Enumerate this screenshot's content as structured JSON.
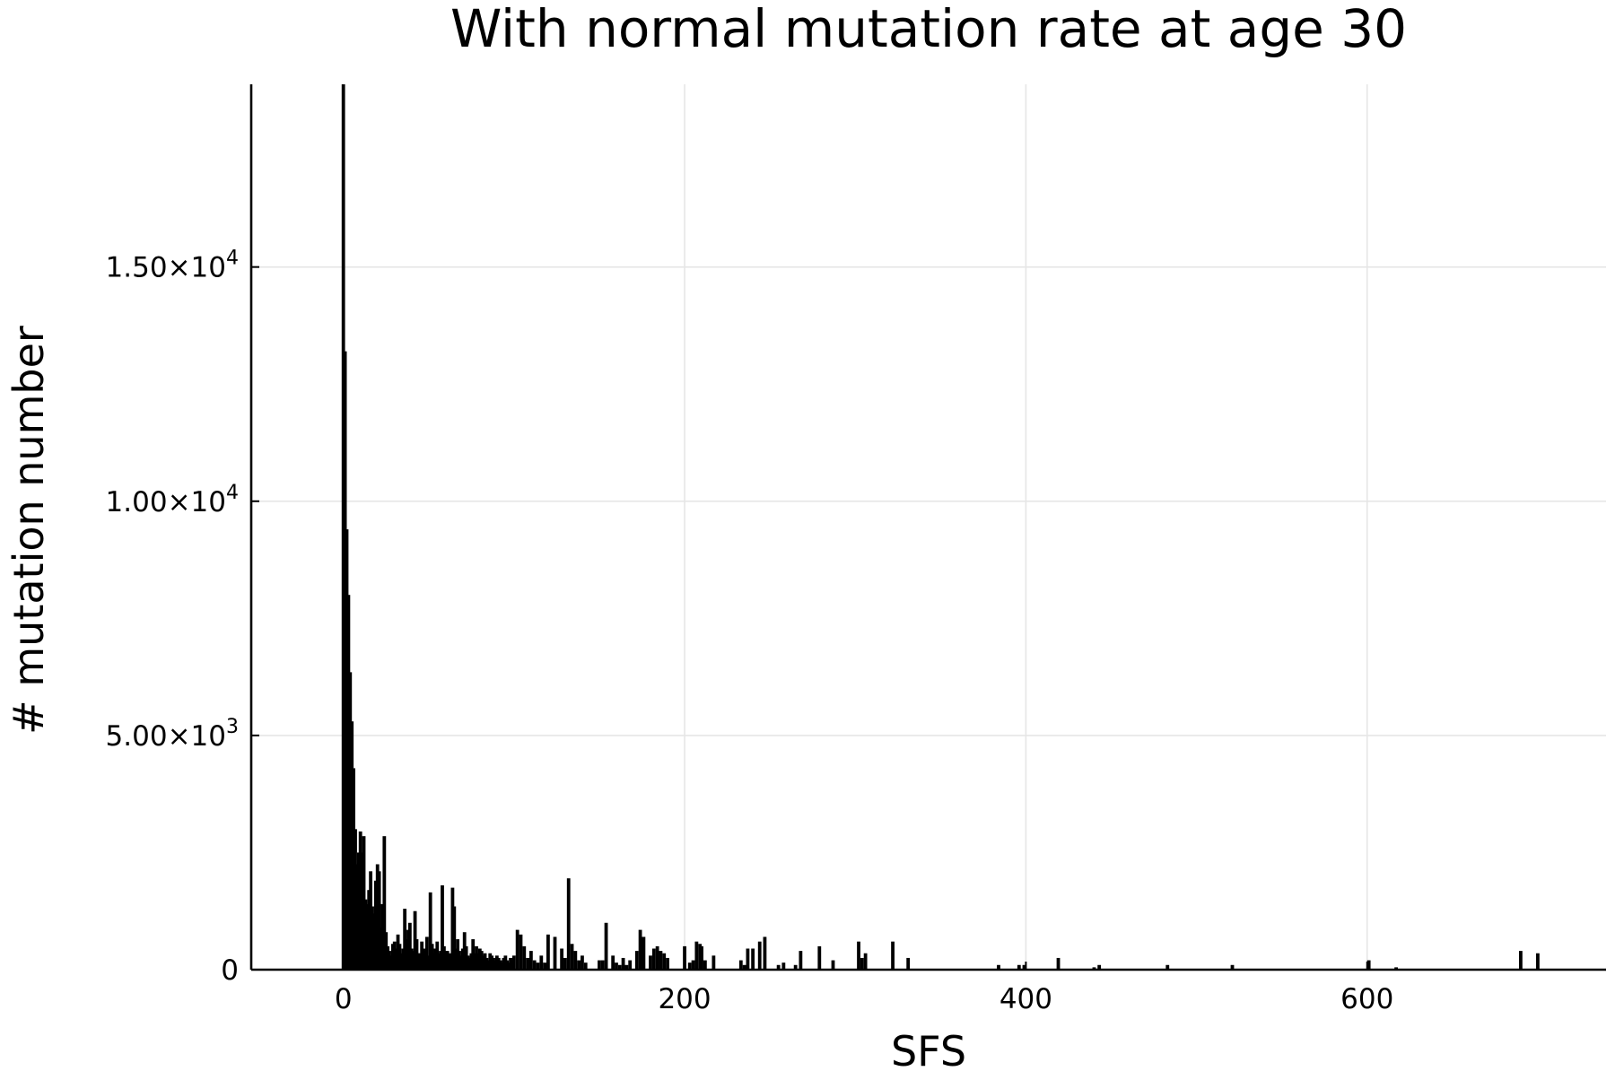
{
  "chart_data": {
    "type": "bar",
    "title": "With normal mutation rate at age 30",
    "xlabel": "SFS",
    "ylabel": "# mutation number",
    "xlim": [
      -54,
      740
    ],
    "ylim": [
      0,
      18900
    ],
    "x_ticks": [
      {
        "value": 0,
        "label": "0"
      },
      {
        "value": 200,
        "label": "200"
      },
      {
        "value": 400,
        "label": "400"
      },
      {
        "value": 600,
        "label": "600"
      }
    ],
    "y_ticks": [
      {
        "value": 0,
        "mantissa": "0",
        "exponent": ""
      },
      {
        "value": 5000,
        "mantissa": "5.00×10",
        "exponent": "3"
      },
      {
        "value": 10000,
        "mantissa": "1.00×10",
        "exponent": "4"
      },
      {
        "value": 15000,
        "mantissa": "1.50×10",
        "exponent": "4"
      }
    ],
    "grid": true,
    "legend": "none",
    "bar_color": "#000000",
    "bar_width": 2,
    "series": [
      {
        "x": [
          0,
          1,
          2,
          3,
          4,
          5,
          6,
          7,
          8,
          9,
          10,
          11,
          12,
          13,
          14,
          15,
          16,
          17,
          18,
          19,
          20,
          21,
          22,
          23,
          24,
          25,
          26,
          27,
          28,
          29,
          30,
          31,
          32,
          33,
          34,
          35,
          36,
          37,
          38,
          39,
          40,
          41,
          42,
          43,
          44,
          45,
          46,
          47,
          48,
          49,
          50,
          51,
          52,
          53,
          54,
          55,
          56,
          57,
          58,
          59,
          60,
          61,
          62,
          63,
          64,
          65,
          66,
          67,
          68,
          69,
          70,
          71,
          72,
          73,
          74,
          75,
          76,
          77,
          78,
          79,
          80,
          81,
          82,
          83,
          84,
          85,
          86,
          87,
          88,
          89,
          90,
          91,
          92,
          93,
          94,
          95,
          96,
          97,
          98,
          99,
          100,
          102,
          104,
          106,
          108,
          110,
          112,
          114,
          116,
          118,
          120,
          124,
          128,
          130,
          132,
          134,
          136,
          138,
          140,
          142,
          150,
          152,
          154,
          158,
          160,
          162,
          164,
          166,
          168,
          172,
          174,
          176,
          180,
          182,
          184,
          186,
          188,
          190,
          200,
          203,
          205,
          207,
          209,
          210,
          212,
          217,
          233,
          235,
          237,
          240,
          244,
          247,
          255,
          258,
          265,
          268,
          279,
          287,
          302,
          304,
          306,
          322,
          331,
          384,
          396,
          399,
          419,
          440,
          443,
          483,
          521,
          601,
          617,
          690,
          700
        ],
        "values": [
          18900,
          13200,
          9400,
          8000,
          6350,
          5300,
          4300,
          3000,
          2250,
          2500,
          2950,
          2500,
          2850,
          1500,
          1400,
          1700,
          2100,
          1350,
          1200,
          1900,
          2250,
          2100,
          900,
          1400,
          2850,
          800,
          500,
          400,
          300,
          550,
          600,
          450,
          750,
          550,
          350,
          450,
          1300,
          650,
          850,
          1000,
          450,
          400,
          1250,
          650,
          350,
          350,
          600,
          450,
          400,
          700,
          300,
          1650,
          550,
          350,
          450,
          600,
          350,
          400,
          1800,
          500,
          400,
          400,
          350,
          300,
          1750,
          1350,
          450,
          650,
          400,
          300,
          450,
          800,
          500,
          300,
          250,
          350,
          650,
          350,
          500,
          350,
          450,
          400,
          300,
          350,
          250,
          200,
          350,
          300,
          250,
          200,
          300,
          250,
          200,
          150,
          250,
          300,
          200,
          150,
          250,
          200,
          300,
          850,
          750,
          500,
          250,
          400,
          200,
          150,
          300,
          150,
          750,
          700,
          450,
          250,
          1950,
          550,
          400,
          200,
          300,
          150,
          200,
          200,
          1000,
          300,
          150,
          100,
          250,
          100,
          200,
          400,
          850,
          700,
          300,
          450,
          500,
          400,
          350,
          250,
          500,
          150,
          200,
          600,
          550,
          500,
          200,
          300,
          200,
          100,
          450,
          450,
          600,
          700,
          100,
          150,
          100,
          400,
          500,
          200,
          600,
          250,
          350,
          600,
          250,
          100,
          100,
          100,
          250,
          50,
          100,
          100,
          100,
          200,
          50,
          400,
          350
        ]
      }
    ]
  }
}
